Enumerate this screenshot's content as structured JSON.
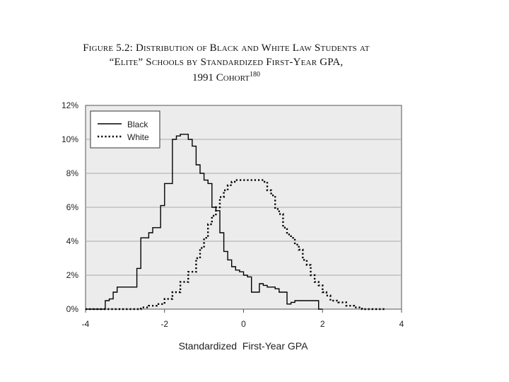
{
  "title": {
    "line1_prefix": "Figure 5.2: Distribution of Black and White Law Students at",
    "line2": "“Elite” Schools by Standardized First-Year GPA,",
    "line3_text": "1991 Cohort",
    "line3_sup": "180"
  },
  "chart_data": {
    "type": "line",
    "xlabel": "Standardized  First-Year GPA",
    "ylabel": "",
    "xlim": [
      -4,
      4
    ],
    "ylim": [
      0,
      12
    ],
    "x_ticks": [
      -4,
      -2,
      0,
      2,
      4
    ],
    "x_tick_labels": [
      "-4",
      "-2",
      "0",
      "2",
      "4"
    ],
    "y_ticks": [
      0,
      2,
      4,
      6,
      8,
      10,
      12
    ],
    "y_tick_labels": [
      "0%",
      "2%",
      "4%",
      "6%",
      "8%",
      "10%",
      "12%"
    ],
    "grid": "horizontal",
    "legend_position": "top-left",
    "colors": {
      "plot_bg": "#ececec",
      "line": "#000000",
      "grid": "#aaaaaa"
    },
    "series": [
      {
        "name": "Black",
        "style": "solid",
        "x": [
          -4.0,
          -3.6,
          -3.5,
          -3.4,
          -3.3,
          -3.2,
          -3.1,
          -3.0,
          -2.9,
          -2.8,
          -2.7,
          -2.6,
          -2.5,
          -2.4,
          -2.3,
          -2.2,
          -2.1,
          -2.0,
          -1.9,
          -1.8,
          -1.7,
          -1.6,
          -1.5,
          -1.4,
          -1.3,
          -1.2,
          -1.1,
          -1.0,
          -0.9,
          -0.8,
          -0.7,
          -0.6,
          -0.5,
          -0.4,
          -0.3,
          -0.2,
          -0.1,
          0.0,
          0.1,
          0.2,
          0.3,
          0.4,
          0.5,
          0.6,
          0.7,
          0.8,
          0.9,
          1.0,
          1.1,
          1.2,
          1.3,
          1.4,
          1.5,
          1.6,
          1.7,
          1.8,
          1.9,
          2.0
        ],
        "values": [
          0.0,
          0.0,
          0.5,
          0.6,
          1.0,
          1.3,
          1.3,
          1.3,
          1.3,
          1.3,
          2.4,
          4.2,
          4.2,
          4.5,
          4.8,
          4.8,
          6.1,
          7.4,
          7.4,
          10.0,
          10.2,
          10.3,
          10.3,
          10.0,
          9.6,
          8.5,
          8.0,
          7.6,
          7.4,
          6.0,
          5.8,
          4.5,
          3.4,
          2.9,
          2.5,
          2.3,
          2.2,
          2.0,
          1.9,
          1.0,
          1.0,
          1.5,
          1.4,
          1.3,
          1.3,
          1.2,
          1.0,
          1.0,
          0.3,
          0.4,
          0.5,
          0.5,
          0.5,
          0.5,
          0.5,
          0.5,
          0.0,
          0.0
        ]
      },
      {
        "name": "White",
        "style": "dotted",
        "x": [
          -4.0,
          -3.5,
          -3.0,
          -2.6,
          -2.4,
          -2.2,
          -2.0,
          -1.8,
          -1.6,
          -1.4,
          -1.2,
          -1.1,
          -1.0,
          -0.9,
          -0.8,
          -0.7,
          -0.6,
          -0.5,
          -0.4,
          -0.3,
          -0.2,
          -0.1,
          0.0,
          0.1,
          0.2,
          0.3,
          0.4,
          0.5,
          0.6,
          0.7,
          0.8,
          0.9,
          1.0,
          1.1,
          1.2,
          1.3,
          1.4,
          1.5,
          1.6,
          1.7,
          1.8,
          1.9,
          2.0,
          2.1,
          2.2,
          2.4,
          2.6,
          2.8,
          3.0,
          3.2,
          3.4,
          3.6
        ],
        "values": [
          0.0,
          0.0,
          0.0,
          0.1,
          0.2,
          0.3,
          0.6,
          1.0,
          1.6,
          2.2,
          3.0,
          3.6,
          4.2,
          5.0,
          5.5,
          6.0,
          6.6,
          7.0,
          7.3,
          7.5,
          7.6,
          7.6,
          7.6,
          7.6,
          7.6,
          7.6,
          7.6,
          7.5,
          7.0,
          6.7,
          5.9,
          5.6,
          4.8,
          4.4,
          4.2,
          3.8,
          3.5,
          2.9,
          2.6,
          2.0,
          1.6,
          1.4,
          1.0,
          0.8,
          0.5,
          0.4,
          0.2,
          0.1,
          0.0,
          0.0,
          0.0,
          0.0
        ]
      }
    ]
  }
}
